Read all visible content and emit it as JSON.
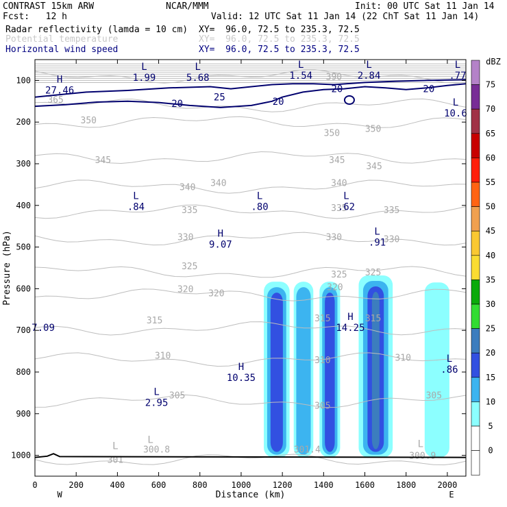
{
  "header": {
    "model": "CONTRAST 15km ARW",
    "org": "NCAR/MMM",
    "init": "Init: 00 UTC Sat 11 Jan 14",
    "fcst": "Fcst:   12 h",
    "valid": "Valid: 12 UTC Sat 11 Jan 14 (22 ChT Sat 11 Jan 14)",
    "fields": [
      {
        "name": "Radar reflectivity (lamda = 10 cm)",
        "xy": "XY=  96.0, 72.5 to 235.3, 72.5",
        "color": "#000000"
      },
      {
        "name": "Potential temperature",
        "xy": "XY=  96.0, 72.5 to 235.3, 72.5",
        "color": "#c8c8c8"
      },
      {
        "name": "Horizontal wind speed",
        "xy": "XY=  96.0, 72.5 to 235.3, 72.5",
        "color": "#000080"
      }
    ]
  },
  "chart_data": {
    "type": "cross-section contour",
    "xlabel": "Distance (km)",
    "ylabel": "Pressure (hPa)",
    "x_ticks": [
      0,
      200,
      400,
      600,
      800,
      1000,
      1200,
      1400,
      1600,
      1800,
      2000
    ],
    "x_end_labels": {
      "left": "W",
      "right": "E"
    },
    "xlim": [
      0,
      2090
    ],
    "y_ticks": [
      100,
      200,
      300,
      400,
      500,
      600,
      700,
      800,
      900,
      1000
    ],
    "ylim": [
      50,
      1050
    ],
    "colorbar": {
      "unit": "dBZ",
      "levels": [
        0,
        5,
        10,
        15,
        20,
        25,
        30,
        35,
        40,
        45,
        50,
        55,
        60,
        65,
        70,
        75
      ],
      "colors": [
        "#ffffff",
        "#8cffff",
        "#3cb4f0",
        "#3250e1",
        "#3c7dbe",
        "#32dc32",
        "#0aaa0a",
        "#fadc32",
        "#fac832",
        "#f0a050",
        "#ff6414",
        "#ff1e0a",
        "#c80000",
        "#a03246",
        "#782d96",
        "#b482c8"
      ]
    },
    "reflectivity_columns": [
      {
        "x0": 1110,
        "x1": 1235,
        "p_top": 583,
        "p_bot": 1005,
        "max_dbz": 15
      },
      {
        "x0": 1255,
        "x1": 1350,
        "p_top": 583,
        "p_bot": 1005,
        "max_dbz": 10
      },
      {
        "x0": 1380,
        "x1": 1480,
        "p_top": 583,
        "p_bot": 1005,
        "max_dbz": 15
      },
      {
        "x0": 1570,
        "x1": 1735,
        "p_top": 568,
        "p_bot": 1005,
        "max_dbz": 20
      },
      {
        "x0": 1890,
        "x1": 2010,
        "p_top": 585,
        "p_bot": 1005,
        "max_dbz": 5
      }
    ],
    "theta_contours": [
      {
        "value": 301,
        "p": 1010
      },
      {
        "value": 305,
        "p": 870
      },
      {
        "value": 310,
        "p": 770
      },
      {
        "value": 315,
        "p": 695
      },
      {
        "value": 320,
        "p": 615
      },
      {
        "value": 325,
        "p": 560
      },
      {
        "value": 330,
        "p": 480
      },
      {
        "value": 335,
        "p": 415
      },
      {
        "value": 340,
        "p": 355
      },
      {
        "value": 345,
        "p": 285
      },
      {
        "value": 350,
        "p": 200
      },
      {
        "value": 365,
        "p": 160
      },
      {
        "value": 390,
        "p": 90
      }
    ],
    "theta_labels": [
      {
        "text": "301",
        "x": 390,
        "p": 1010
      },
      {
        "text": "300.8",
        "x": 590,
        "p": 985
      },
      {
        "text": "301.4",
        "x": 1320,
        "p": 985
      },
      {
        "text": "300.9",
        "x": 1880,
        "p": 1000
      },
      {
        "text": "305",
        "x": 690,
        "p": 855
      },
      {
        "text": "305",
        "x": 1395,
        "p": 880
      },
      {
        "text": "305",
        "x": 1935,
        "p": 855
      },
      {
        "text": "310",
        "x": 620,
        "p": 760
      },
      {
        "text": "310",
        "x": 1395,
        "p": 770
      },
      {
        "text": "310",
        "x": 1785,
        "p": 765
      },
      {
        "text": "315",
        "x": 580,
        "p": 675
      },
      {
        "text": "315",
        "x": 1395,
        "p": 670
      },
      {
        "text": "315",
        "x": 1640,
        "p": 670
      },
      {
        "text": "320",
        "x": 730,
        "p": 600
      },
      {
        "text": "320",
        "x": 880,
        "p": 610
      },
      {
        "text": "320",
        "x": 1455,
        "p": 595
      },
      {
        "text": "325",
        "x": 750,
        "p": 545
      },
      {
        "text": "325",
        "x": 1475,
        "p": 565
      },
      {
        "text": "325",
        "x": 1640,
        "p": 560
      },
      {
        "text": "330",
        "x": 730,
        "p": 475
      },
      {
        "text": "330",
        "x": 1450,
        "p": 475
      },
      {
        "text": "330",
        "x": 1730,
        "p": 480
      },
      {
        "text": "335",
        "x": 750,
        "p": 410
      },
      {
        "text": "335",
        "x": 1475,
        "p": 405
      },
      {
        "text": "335",
        "x": 1730,
        "p": 410
      },
      {
        "text": "340",
        "x": 740,
        "p": 355
      },
      {
        "text": "340",
        "x": 890,
        "p": 345
      },
      {
        "text": "340",
        "x": 1475,
        "p": 345
      },
      {
        "text": "345",
        "x": 330,
        "p": 290
      },
      {
        "text": "345",
        "x": 1465,
        "p": 290
      },
      {
        "text": "345",
        "x": 1645,
        "p": 305
      },
      {
        "text": "350",
        "x": 260,
        "p": 195
      },
      {
        "text": "350",
        "x": 1440,
        "p": 225
      },
      {
        "text": "350",
        "x": 1640,
        "p": 215
      },
      {
        "text": "365",
        "x": 100,
        "p": 145
      },
      {
        "text": "390",
        "x": 1450,
        "p": 90
      }
    ],
    "wind_contours": [
      {
        "value": 20,
        "p_label": 155,
        "x_label": 690
      },
      {
        "value": 25,
        "p_label": 140,
        "x_label": 895
      },
      {
        "value": 20,
        "p_label": 150,
        "x_label": 1180
      },
      {
        "value": 20,
        "p_label": 120,
        "x_label": 1465
      },
      {
        "value": 20,
        "p_label": 120,
        "x_label": 1910
      }
    ],
    "extrema": [
      {
        "type": "H",
        "value": "27.46",
        "x": 120,
        "p": 110
      },
      {
        "type": "L",
        "value": "1.99",
        "x": 530,
        "p": 80
      },
      {
        "type": "L",
        "value": "5.68",
        "x": 790,
        "p": 80
      },
      {
        "type": "L",
        "value": "1.54",
        "x": 1290,
        "p": 75
      },
      {
        "type": "L",
        "value": "2.84",
        "x": 1620,
        "p": 75
      },
      {
        "type": "L",
        "value": ".77",
        "x": 2050,
        "p": 75
      },
      {
        "type": "L",
        "value": "10.6",
        "x": 2040,
        "p": 165
      },
      {
        "type": "L",
        "value": ".84",
        "x": 490,
        "p": 390
      },
      {
        "type": "L",
        "value": ".80",
        "x": 1090,
        "p": 390
      },
      {
        "type": "L",
        "value": ".62",
        "x": 1510,
        "p": 390
      },
      {
        "type": "H",
        "value": "9.07",
        "x": 900,
        "p": 480
      },
      {
        "type": "L",
        "value": ".91",
        "x": 1660,
        "p": 475
      },
      {
        "type": "",
        "value": "7.09",
        "x": 40,
        "p": 680
      },
      {
        "type": "H",
        "value": "14.25",
        "x": 1530,
        "p": 680
      },
      {
        "type": "L",
        "value": ".86",
        "x": 2010,
        "p": 780
      },
      {
        "type": "H",
        "value": "10.35",
        "x": 1000,
        "p": 800
      },
      {
        "type": "L",
        "value": "2.95",
        "x": 590,
        "p": 860
      },
      {
        "type": "L",
        "value": "",
        "x": 390,
        "p": 990
      },
      {
        "type": "L",
        "value": "",
        "x": 560,
        "p": 975
      },
      {
        "type": "L",
        "value": "",
        "x": 1870,
        "p": 985
      }
    ]
  }
}
